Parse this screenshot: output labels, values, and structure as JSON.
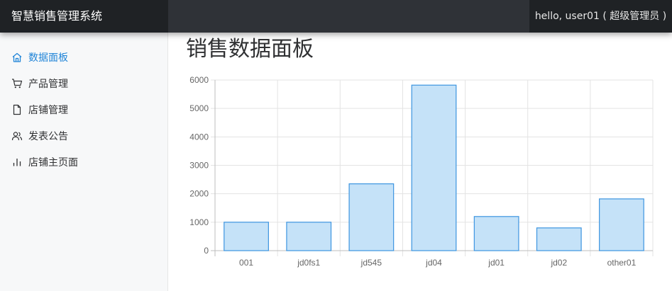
{
  "app": {
    "title": "智慧销售管理系统",
    "user_greeting": "hello, user01 ( 超级管理员 )"
  },
  "sidebar": {
    "items": [
      {
        "label": "数据面板",
        "icon": "home-icon",
        "active": true
      },
      {
        "label": "产品管理",
        "icon": "cart-icon",
        "active": false
      },
      {
        "label": "店铺管理",
        "icon": "file-icon",
        "active": false
      },
      {
        "label": "发表公告",
        "icon": "users-icon",
        "active": false
      },
      {
        "label": "店铺主页面",
        "icon": "bar-chart-icon",
        "active": false
      }
    ]
  },
  "main": {
    "title": "销售数据面板"
  },
  "colors": {
    "accent": "#2185d8",
    "bar_fill": "#c5e2f8",
    "bar_stroke": "#3d95e0",
    "topbar": "#2f3237",
    "topbar_dark": "#1f2225"
  },
  "chart_data": {
    "type": "bar",
    "categories": [
      "001",
      "jd0fs1",
      "jd545",
      "jd04",
      "jd01",
      "jd02",
      "other01"
    ],
    "values": [
      1000,
      1000,
      2350,
      5820,
      1200,
      800,
      1820
    ],
    "ylim": [
      0,
      6000
    ],
    "yticks": [
      0,
      1000,
      2000,
      3000,
      4000,
      5000,
      6000
    ],
    "grid": true,
    "legend": "none"
  }
}
